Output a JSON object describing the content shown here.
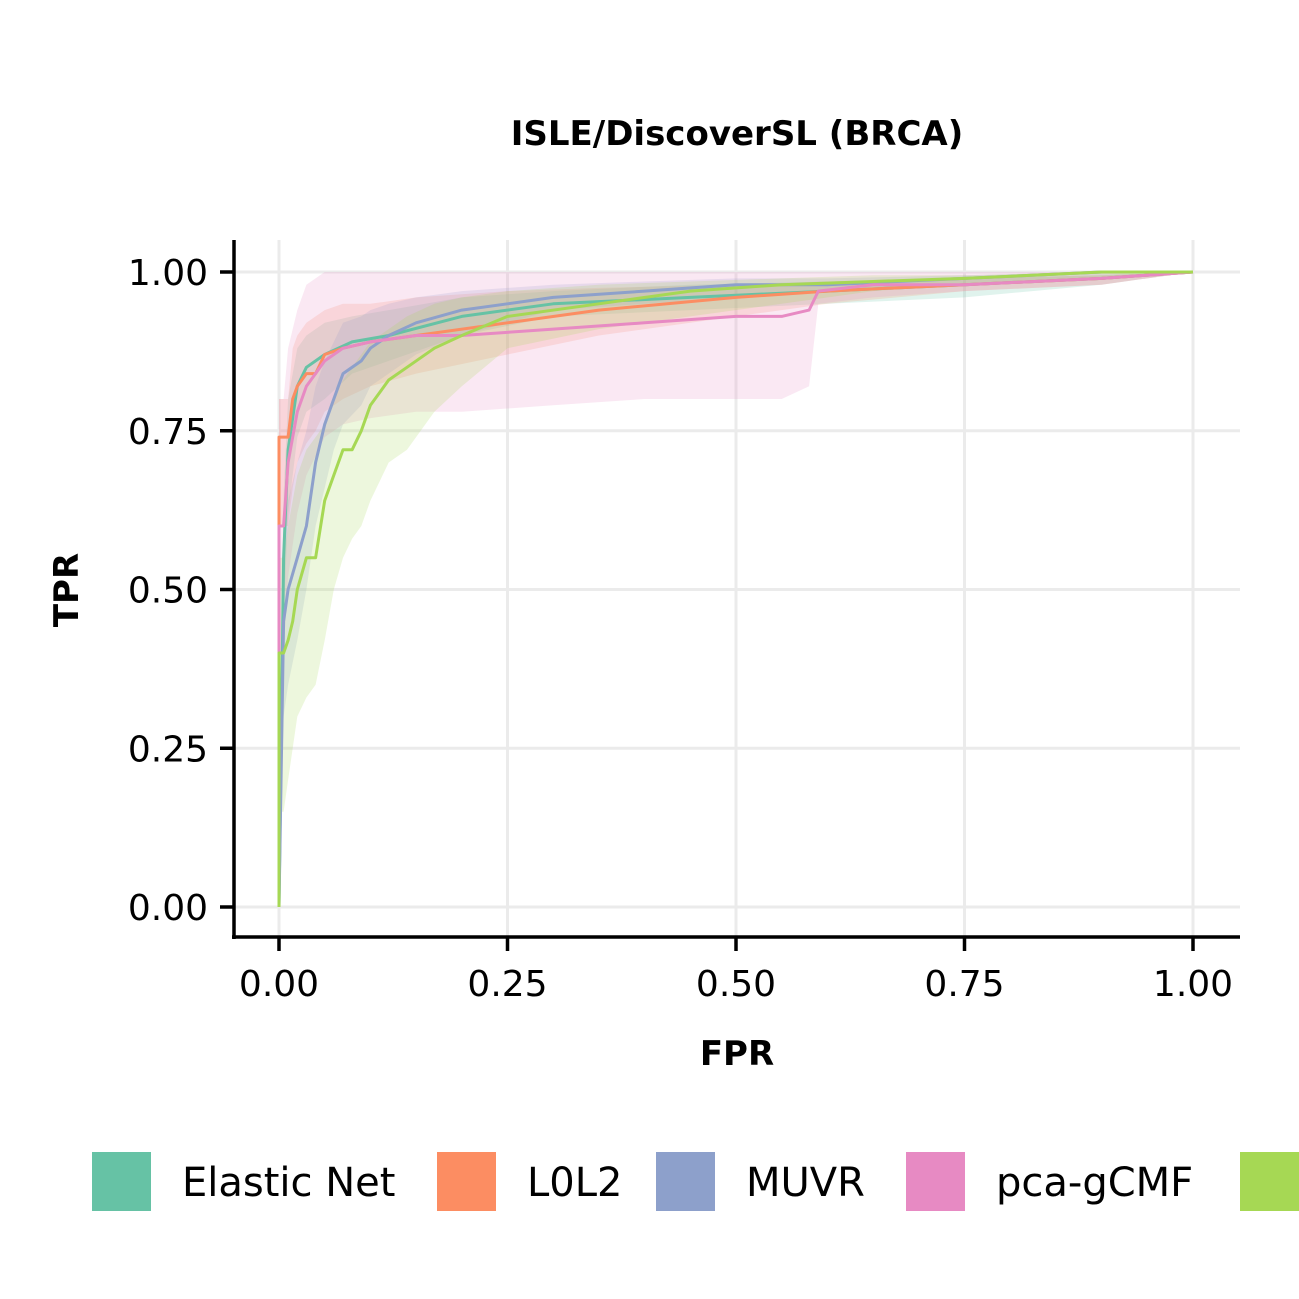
{
  "chart_data": {
    "type": "line",
    "title": "ISLE/DiscoverSL (BRCA)",
    "xlabel": "FPR",
    "ylabel": "TPR",
    "xlim": [
      0,
      1
    ],
    "ylim": [
      0,
      1
    ],
    "xticks": [
      0,
      0.25,
      0.5,
      0.75,
      1
    ],
    "yticks": [
      0,
      0.25,
      0.5,
      0.75,
      1
    ],
    "x_tick_labels": [
      "0.00",
      "0.25",
      "0.50",
      "0.75",
      "1.00"
    ],
    "y_tick_labels": [
      "0.00",
      "0.25",
      "0.50",
      "0.75",
      "1.00"
    ],
    "grid": true,
    "legend_position": "bottom",
    "series": [
      {
        "name": "Elastic Net",
        "color": "#66c2a5",
        "x": [
          0,
          0.005,
          0.01,
          0.02,
          0.03,
          0.05,
          0.08,
          0.12,
          0.2,
          0.3,
          0.45,
          0.6,
          0.75,
          0.9,
          1.0
        ],
        "y": [
          0,
          0.55,
          0.72,
          0.82,
          0.85,
          0.87,
          0.89,
          0.9,
          0.93,
          0.95,
          0.96,
          0.97,
          0.98,
          0.99,
          1.0
        ],
        "lower": [
          0,
          0.45,
          0.62,
          0.74,
          0.78,
          0.8,
          0.84,
          0.86,
          0.9,
          0.93,
          0.94,
          0.95,
          0.96,
          0.98,
          1.0
        ],
        "upper": [
          0,
          0.65,
          0.8,
          0.88,
          0.9,
          0.92,
          0.93,
          0.94,
          0.96,
          0.97,
          0.98,
          0.985,
          0.99,
          0.995,
          1.0
        ]
      },
      {
        "name": "L0L2",
        "color": "#fc8d62",
        "x": [
          0,
          0,
          0.01,
          0.015,
          0.02,
          0.03,
          0.04,
          0.05,
          0.07,
          0.1,
          0.15,
          0.25,
          0.35,
          0.5,
          0.6,
          0.75,
          0.9,
          1.0
        ],
        "y": [
          0,
          0.74,
          0.74,
          0.8,
          0.82,
          0.84,
          0.84,
          0.87,
          0.88,
          0.89,
          0.9,
          0.92,
          0.94,
          0.96,
          0.97,
          0.98,
          0.99,
          1.0
        ],
        "lower": [
          0,
          0.6,
          0.6,
          0.66,
          0.7,
          0.73,
          0.75,
          0.78,
          0.8,
          0.82,
          0.84,
          0.87,
          0.9,
          0.93,
          0.95,
          0.97,
          0.98,
          1.0
        ],
        "upper": [
          0,
          0.8,
          0.8,
          0.88,
          0.9,
          0.92,
          0.93,
          0.94,
          0.95,
          0.95,
          0.96,
          0.97,
          0.975,
          0.98,
          0.985,
          0.99,
          0.995,
          1.0
        ]
      },
      {
        "name": "MUVR",
        "color": "#8da0cb",
        "x": [
          0,
          0.005,
          0.01,
          0.02,
          0.03,
          0.04,
          0.05,
          0.06,
          0.07,
          0.09,
          0.1,
          0.12,
          0.15,
          0.2,
          0.25,
          0.3,
          0.4,
          0.5,
          0.6,
          0.75,
          0.9,
          1.0
        ],
        "y": [
          0,
          0.45,
          0.5,
          0.55,
          0.6,
          0.7,
          0.76,
          0.8,
          0.84,
          0.86,
          0.88,
          0.9,
          0.92,
          0.94,
          0.95,
          0.96,
          0.97,
          0.98,
          0.98,
          0.99,
          1.0,
          1.0
        ],
        "lower": [
          0,
          0.3,
          0.35,
          0.42,
          0.5,
          0.6,
          0.66,
          0.72,
          0.76,
          0.79,
          0.82,
          0.84,
          0.87,
          0.9,
          0.92,
          0.94,
          0.95,
          0.96,
          0.97,
          0.98,
          0.99,
          1.0
        ],
        "upper": [
          0,
          0.58,
          0.64,
          0.7,
          0.75,
          0.82,
          0.86,
          0.89,
          0.92,
          0.93,
          0.94,
          0.95,
          0.96,
          0.97,
          0.975,
          0.98,
          0.985,
          0.99,
          0.99,
          0.995,
          1.0,
          1.0
        ]
      },
      {
        "name": "pca-gCMF",
        "color": "#e78ac3",
        "x": [
          0,
          0,
          0.005,
          0.01,
          0.02,
          0.03,
          0.05,
          0.07,
          0.1,
          0.15,
          0.2,
          0.3,
          0.4,
          0.5,
          0.55,
          0.58,
          0.59,
          0.65,
          0.75,
          0.9,
          1.0
        ],
        "y": [
          0,
          0.6,
          0.6,
          0.7,
          0.78,
          0.82,
          0.86,
          0.88,
          0.89,
          0.9,
          0.9,
          0.91,
          0.92,
          0.93,
          0.93,
          0.94,
          0.97,
          0.98,
          0.98,
          0.99,
          1.0
        ],
        "lower": [
          0,
          0.4,
          0.4,
          0.52,
          0.62,
          0.68,
          0.74,
          0.76,
          0.77,
          0.78,
          0.78,
          0.79,
          0.8,
          0.8,
          0.8,
          0.82,
          0.95,
          0.96,
          0.97,
          0.98,
          1.0
        ],
        "upper": [
          0,
          0.8,
          0.8,
          0.88,
          0.94,
          0.98,
          1.0,
          1.0,
          1.0,
          1.0,
          1.0,
          1.0,
          1.0,
          1.0,
          1.0,
          1.0,
          1.0,
          1.0,
          1.0,
          1.0,
          1.0
        ]
      },
      {
        "name": "",
        "color": "#a6d854",
        "x": [
          0,
          0,
          0.005,
          0.01,
          0.015,
          0.02,
          0.03,
          0.04,
          0.05,
          0.06,
          0.07,
          0.08,
          0.09,
          0.1,
          0.12,
          0.14,
          0.17,
          0.2,
          0.25,
          0.35,
          0.45,
          0.55,
          0.65,
          0.75,
          0.9,
          1.0
        ],
        "y": [
          0,
          0.4,
          0.4,
          0.42,
          0.45,
          0.5,
          0.55,
          0.55,
          0.64,
          0.68,
          0.72,
          0.72,
          0.75,
          0.79,
          0.83,
          0.85,
          0.88,
          0.9,
          0.93,
          0.95,
          0.97,
          0.98,
          0.985,
          0.99,
          1.0,
          1.0
        ],
        "lower": [
          0,
          0.15,
          0.15,
          0.2,
          0.25,
          0.3,
          0.33,
          0.35,
          0.42,
          0.5,
          0.55,
          0.58,
          0.6,
          0.64,
          0.7,
          0.72,
          0.78,
          0.82,
          0.88,
          0.91,
          0.93,
          0.95,
          0.97,
          0.98,
          0.99,
          1.0
        ],
        "upper": [
          0,
          0.55,
          0.55,
          0.6,
          0.64,
          0.68,
          0.72,
          0.74,
          0.76,
          0.8,
          0.83,
          0.85,
          0.87,
          0.89,
          0.91,
          0.93,
          0.95,
          0.96,
          0.97,
          0.98,
          0.985,
          0.99,
          0.995,
          0.995,
          1.0,
          1.0
        ]
      }
    ]
  }
}
